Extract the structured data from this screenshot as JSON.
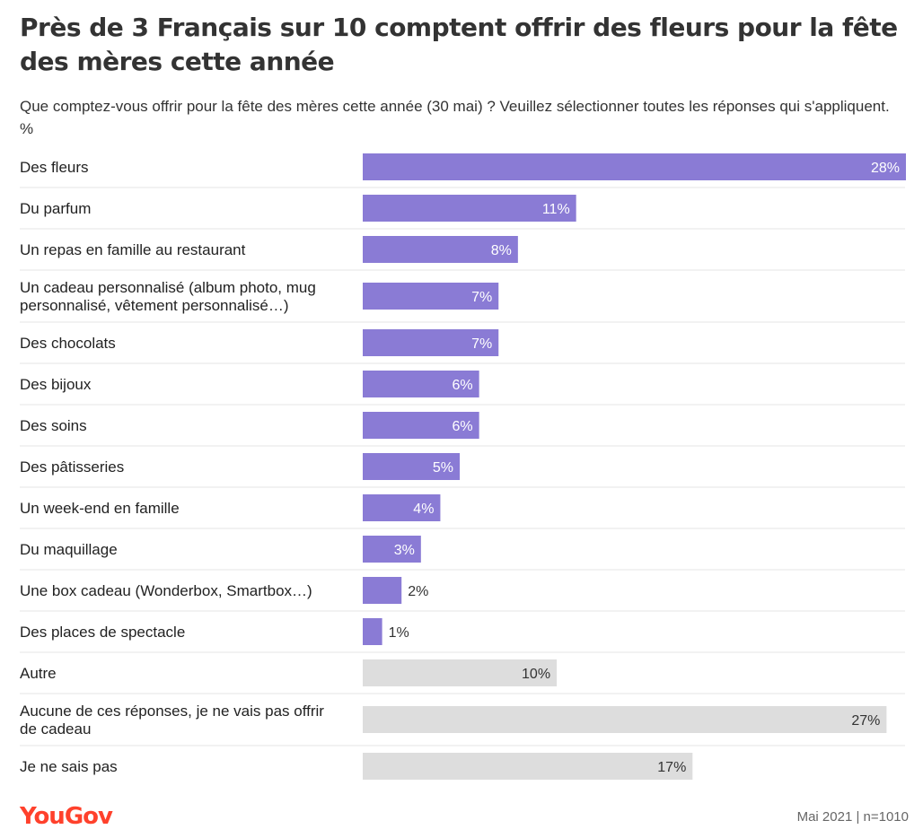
{
  "title": "Près de 3 Français sur 10 comptent offrir des fleurs pour la fête des mères cette année",
  "subtitle": "Que comptez-vous offrir pour la fête des mères cette année (30 mai) ? Veuillez sélectionner toutes les réponses qui s'appliquent. %",
  "logo_text": "YouGov",
  "footnote": "Mai 2021 | n=1010",
  "colors": {
    "primary_bar": "#8a7bd5",
    "secondary_bar": "#dddddd",
    "divider": "#e6e6e6",
    "brand": "#ff412c"
  },
  "chart_data": {
    "type": "bar",
    "orientation": "horizontal",
    "value_suffix": "%",
    "xlim": [
      0,
      28
    ],
    "grid": false,
    "categories": [
      "Des fleurs",
      "Du parfum",
      "Un repas en famille au restaurant",
      [
        "Un cadeau personnalisé (album photo, mug",
        "personnalisé, vêtement personnalisé…)"
      ],
      "Des chocolats",
      "Des bijoux",
      "Des soins",
      "Des pâtisseries",
      "Un week-end en famille",
      "Du maquillage",
      "Une box cadeau (Wonderbox, Smartbox…)",
      "Des places de spectacle",
      "Autre",
      [
        "Aucune de ces réponses, je ne vais pas offrir",
        "de cadeau"
      ],
      "Je ne sais pas"
    ],
    "values": [
      28,
      11,
      8,
      7,
      7,
      6,
      6,
      5,
      4,
      3,
      2,
      1,
      10,
      27,
      17
    ],
    "bar_color_group": [
      "primary",
      "primary",
      "primary",
      "primary",
      "primary",
      "primary",
      "primary",
      "primary",
      "primary",
      "primary",
      "primary",
      "primary",
      "secondary",
      "secondary",
      "secondary"
    ]
  }
}
